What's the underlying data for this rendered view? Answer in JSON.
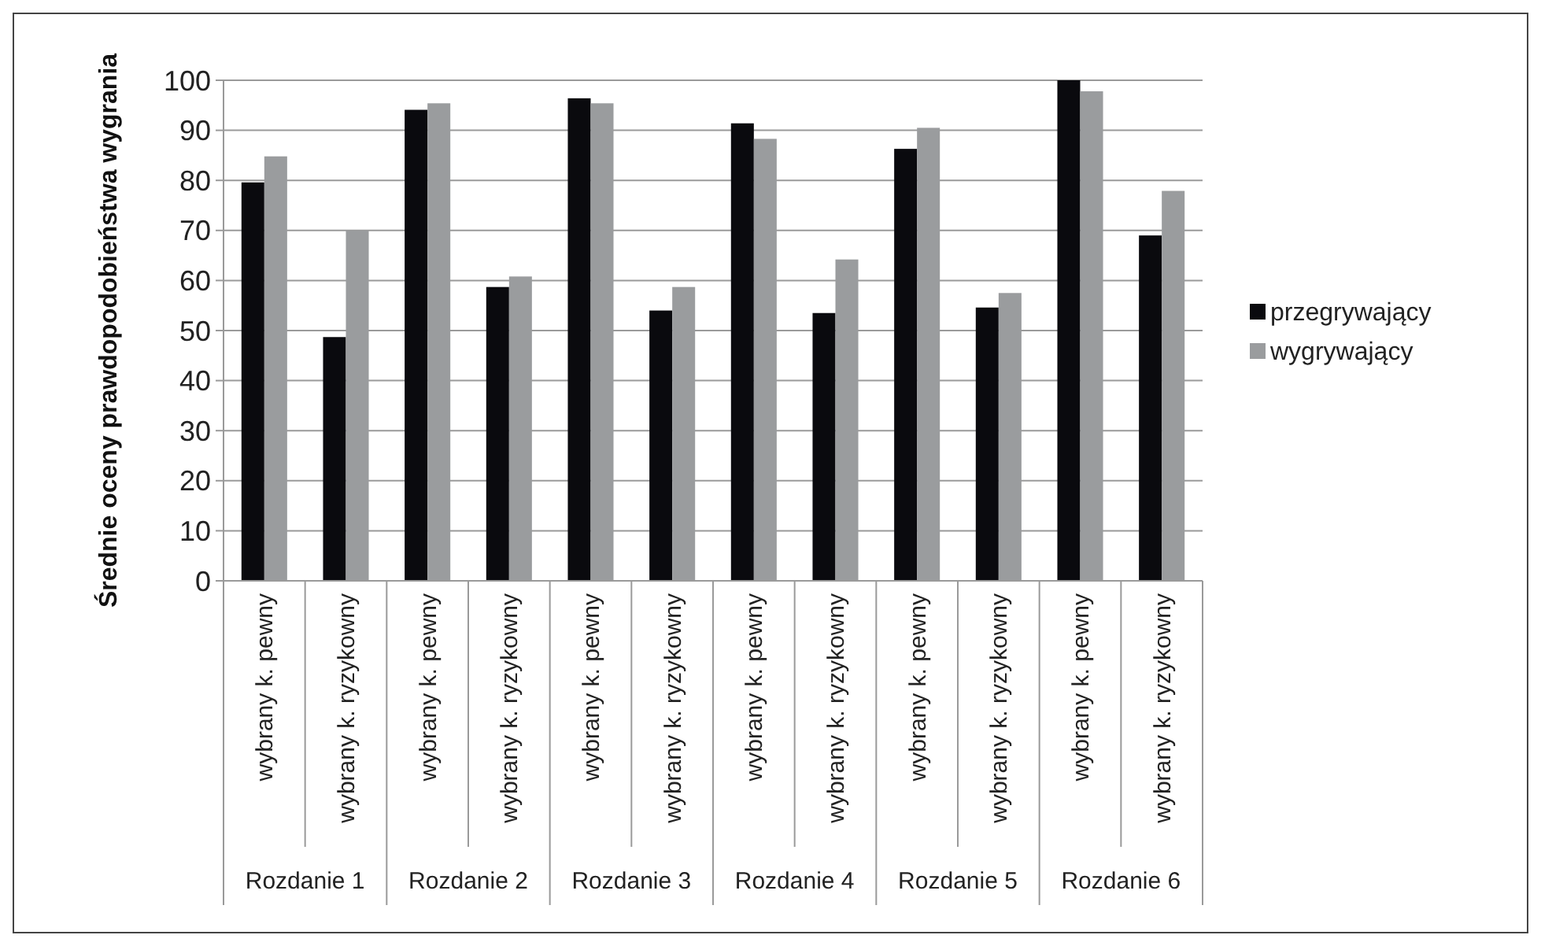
{
  "chart_data": {
    "type": "bar",
    "ylabel": "Średnie oceny prawdopodobieństwa wygrania",
    "categories": [
      "wybrany k. pewny",
      "wybrany k. ryzykowny",
      "wybrany k. pewny",
      "wybrany k. ryzykowny",
      "wybrany k. pewny",
      "wybrany k. ryzykowny",
      "wybrany k. pewny",
      "wybrany k. ryzykowny",
      "wybrany k. pewny",
      "wybrany k. ryzykowny",
      "wybrany k. pewny",
      "wybrany k. ryzykowny"
    ],
    "series": [
      {
        "name": "przegrywający",
        "color": "#0a0a0e",
        "values": [
          79.6,
          48.7,
          94.1,
          58.7,
          96.4,
          54.0,
          91.4,
          53.5,
          86.3,
          54.6,
          100,
          69.0
        ]
      },
      {
        "name": "wygrywający",
        "color": "#9a9c9e",
        "values": [
          84.8,
          70.0,
          95.4,
          60.8,
          95.4,
          58.7,
          88.3,
          64.2,
          90.5,
          57.5,
          97.8,
          77.9
        ]
      }
    ],
    "annotations": [
      "Rozdanie 1",
      "Rozdanie 2",
      "Rozdanie 3",
      "Rozdanie 4",
      "Rozdanie 5",
      "Rozdanie 6"
    ],
    "ylim": [
      0,
      100
    ],
    "yticks": [
      0,
      10,
      20,
      30,
      40,
      50,
      60,
      70,
      80,
      90,
      100
    ],
    "grid": "y",
    "legend": "right"
  }
}
